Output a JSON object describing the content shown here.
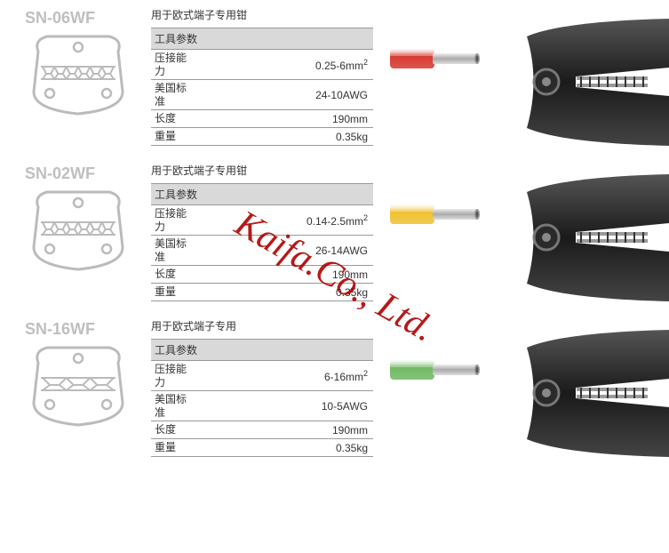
{
  "watermark": "Kaifa.Co., Ltd.",
  "products": [
    {
      "model": "SN-06WF",
      "desc": "用于欧式端子专用钳",
      "spec_header": "工具参数",
      "die_teeth": 6,
      "ferrule_color": "#d6382e",
      "rows": [
        {
          "k": "压接能力",
          "v": "0.25-6mm",
          "sup": "2",
          "tall": true
        },
        {
          "k": "美国标准",
          "v": "24-10AWG",
          "tall": true
        },
        {
          "k": "长度",
          "v": "190mm"
        },
        {
          "k": "重量",
          "v": "0.35kg"
        }
      ]
    },
    {
      "model": "SN-02WF",
      "desc": "用于欧式端子专用钳",
      "spec_header": "工具参数",
      "die_teeth": 6,
      "ferrule_color": "#f0c030",
      "rows": [
        {
          "k": "压接能力",
          "v": "0.14-2.5mm",
          "sup": "2",
          "tall": true
        },
        {
          "k": "美国标准",
          "v": "26-14AWG",
          "tall": true
        },
        {
          "k": "长度",
          "v": "190mm"
        },
        {
          "k": "重量",
          "v": "0.35kg"
        }
      ]
    },
    {
      "model": "SN-16WF",
      "desc": "用于欧式端子专用",
      "spec_header": "工具参数",
      "die_teeth": 3,
      "ferrule_color": "#6fb860",
      "rows": [
        {
          "k": "压接能力",
          "v": "6-16mm",
          "sup": "2",
          "tall": true
        },
        {
          "k": "美国标准",
          "v": "10-5AWG",
          "tall": true
        },
        {
          "k": "长度",
          "v": "190mm"
        },
        {
          "k": "重量",
          "v": "0.35kg"
        }
      ]
    }
  ]
}
